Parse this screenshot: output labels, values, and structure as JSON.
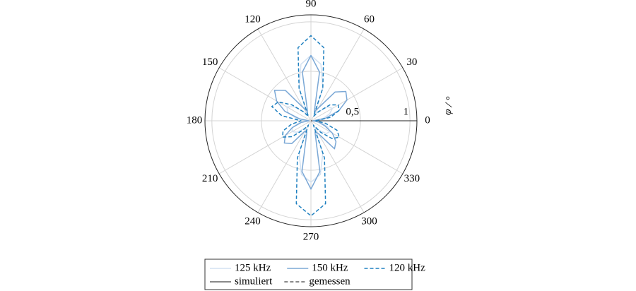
{
  "chart_data": {
    "type": "polar",
    "axis_label": "φ / °",
    "theta": [
      0,
      10,
      20,
      30,
      40,
      50,
      60,
      70,
      80,
      90,
      100,
      110,
      120,
      130,
      140,
      150,
      160,
      170,
      180,
      190,
      200,
      210,
      220,
      230,
      240,
      250,
      260,
      270,
      280,
      290,
      300,
      310,
      320,
      330,
      340,
      350
    ],
    "thetaticks": [
      0,
      30,
      60,
      90,
      120,
      150,
      180,
      210,
      240,
      270,
      300,
      330
    ],
    "rlim": [
      0,
      1.07
    ],
    "rticks": [
      {
        "value": 0.5,
        "label": "0,5"
      },
      1
    ],
    "grid": true,
    "series": [
      {
        "name": "125 kHz",
        "color": "#d3e2f2",
        "dash": false,
        "values": [
          0.03,
          0.12,
          0.2,
          0.25,
          0.22,
          0.12,
          0.08,
          0.35,
          0.58,
          0.66,
          0.58,
          0.35,
          0.08,
          0.12,
          0.22,
          0.28,
          0.25,
          0.15,
          0.05,
          0.12,
          0.2,
          0.22,
          0.18,
          0.1,
          0.08,
          0.35,
          0.55,
          0.62,
          0.55,
          0.35,
          0.08,
          0.12,
          0.2,
          0.22,
          0.18,
          0.1
        ]
      },
      {
        "name": "150 kHz",
        "color": "#7ba8d6",
        "dash": false,
        "values": [
          0.02,
          0.15,
          0.3,
          0.42,
          0.46,
          0.38,
          0.15,
          0.1,
          0.5,
          0.66,
          0.5,
          0.1,
          0.15,
          0.4,
          0.48,
          0.4,
          0.28,
          0.12,
          0.02,
          0.1,
          0.2,
          0.3,
          0.35,
          0.3,
          0.12,
          0.12,
          0.52,
          0.69,
          0.52,
          0.12,
          0.15,
          0.37,
          0.33,
          0.25,
          0.15,
          0.08
        ]
      },
      {
        "name": "120 kHz",
        "color": "#1f80c0",
        "dash": true,
        "values": [
          0.05,
          0.2,
          0.3,
          0.32,
          0.25,
          0.12,
          0.05,
          0.35,
          0.75,
          0.86,
          0.75,
          0.35,
          0.05,
          0.12,
          0.25,
          0.38,
          0.42,
          0.3,
          0.1,
          0.2,
          0.3,
          0.33,
          0.25,
          0.12,
          0.05,
          0.4,
          0.85,
          0.96,
          0.85,
          0.4,
          0.05,
          0.15,
          0.28,
          0.33,
          0.28,
          0.15
        ]
      }
    ],
    "style_legend": [
      {
        "label": "simuliert",
        "dash": false
      },
      {
        "label": "gemessen",
        "dash": true
      }
    ]
  }
}
